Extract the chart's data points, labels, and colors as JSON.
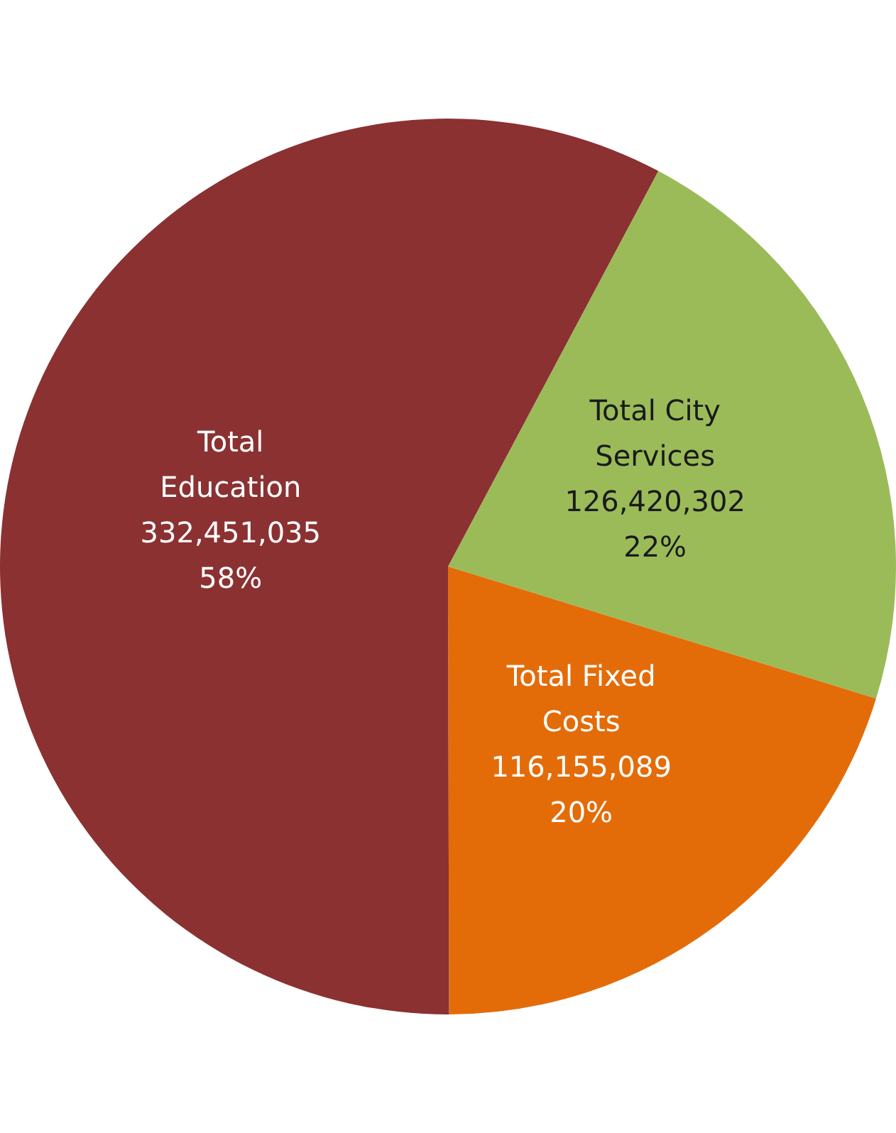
{
  "chart_data": {
    "type": "pie",
    "categories": [
      "Total City Services",
      "Total Fixed Costs",
      "Total Education"
    ],
    "values": [
      126420302,
      116155089,
      332451035
    ],
    "colors": [
      "#9bbb59",
      "#e36c09",
      "#8b3132"
    ],
    "value_labels": [
      "126,420,302\n22%",
      "116,155,089\n20%",
      "332,451,035\n58%"
    ],
    "legend": false
  }
}
